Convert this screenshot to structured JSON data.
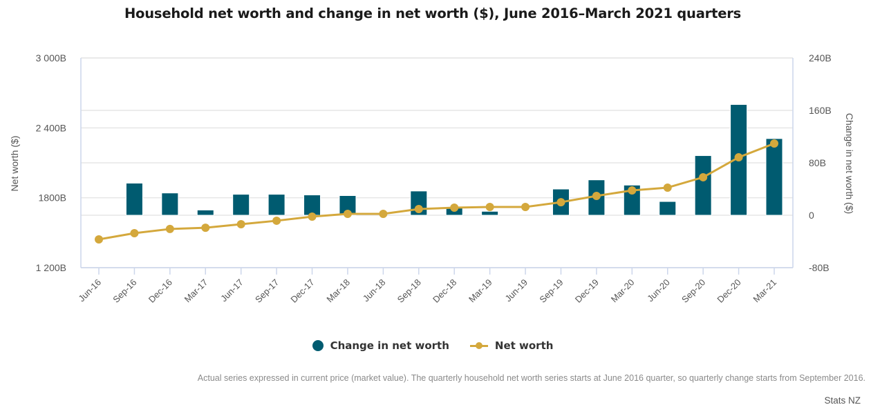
{
  "chart_data": {
    "type": "bar+line",
    "title": "Household net worth and change in net worth ($), June 2016–March 2021 quarters",
    "categories": [
      "Jun-16",
      "Sep-16",
      "Dec-16",
      "Mar-17",
      "Jun-17",
      "Sep-17",
      "Dec-17",
      "Mar-18",
      "Jun-18",
      "Sep-18",
      "Dec-18",
      "Mar-19",
      "Jun-19",
      "Sep-19",
      "Dec-19",
      "Mar-20",
      "Jun-20",
      "Sep-20",
      "Dec-20",
      "Mar-21"
    ],
    "series": [
      {
        "name": "Change in net worth",
        "type": "bar",
        "axis": "right",
        "color": "#005b70",
        "values": [
          null,
          49,
          34,
          8,
          32,
          32,
          31,
          30,
          0,
          37,
          13,
          6,
          0,
          40,
          54,
          46,
          21,
          91,
          169,
          117
        ]
      },
      {
        "name": "Net worth",
        "type": "line",
        "axis": "left",
        "color": "#d4a83c",
        "values": [
          1443,
          1496,
          1532,
          1543,
          1573,
          1603,
          1638,
          1662,
          1662,
          1703,
          1715,
          1721,
          1721,
          1762,
          1816,
          1863,
          1887,
          1976,
          2147,
          2266
        ]
      }
    ],
    "left_axis": {
      "label": "Net worth ($)",
      "ylim": [
        1200,
        3000
      ],
      "ticks": [
        1200,
        1800,
        2400,
        3000
      ],
      "tick_labels": [
        "1 200B",
        "1800B",
        "2 400B",
        "3 000B"
      ]
    },
    "right_axis": {
      "label": "Change in net worth ($)",
      "ylim": [
        -80,
        240
      ],
      "ticks": [
        -80,
        0,
        80,
        160,
        240
      ],
      "tick_labels": [
        "-80B",
        "0",
        "80B",
        "160B",
        "240B"
      ]
    },
    "units": "NZD billions",
    "grid": true,
    "legend_position": "bottom-center"
  },
  "legend": {
    "items": [
      {
        "label": "Change in net worth",
        "kind": "dot",
        "color": "#005b70"
      },
      {
        "label": "Net worth",
        "kind": "line-marker",
        "color": "#d4a83c"
      }
    ]
  },
  "footnote": "Actual series expressed in current price (market value). The quarterly household net worth series starts at June 2016 quarter, so quarterly change starts from September 2016.",
  "source": "Stats NZ"
}
